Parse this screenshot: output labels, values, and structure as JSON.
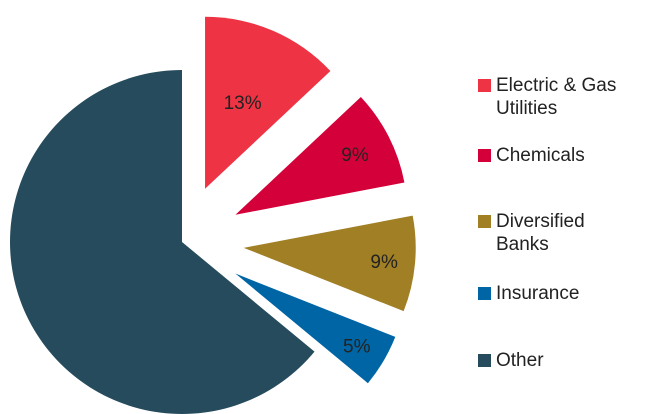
{
  "chart_data": {
    "type": "pie",
    "title": "",
    "exploded": true,
    "start_angle_deg": 0,
    "direction": "clockwise",
    "legend_placement": "right",
    "series": [
      {
        "slices": [
          {
            "name": "Electric & Gas Utilities",
            "value": 13,
            "label": "13%",
            "color": "#ee3444"
          },
          {
            "name": "Chemicals",
            "value": 9,
            "label": "9%",
            "color": "#d4003a"
          },
          {
            "name": "Diversified Banks",
            "value": 9,
            "label": "9%",
            "color": "#a07f25"
          },
          {
            "name": "Insurance",
            "value": 5,
            "label": "5%",
            "color": "#0065a5"
          },
          {
            "name": "Other",
            "value": 64,
            "label": "",
            "color": "#264b5c"
          }
        ]
      }
    ]
  }
}
